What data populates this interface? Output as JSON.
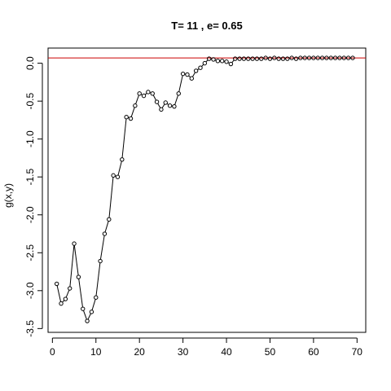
{
  "chart_data": {
    "type": "line",
    "title": "T=  11 , e=  0.65",
    "xlabel": "",
    "ylabel": "g(x,y)",
    "xlim": [
      -1,
      72
    ],
    "ylim": [
      -3.55,
      0.2
    ],
    "x_ticks": [
      0,
      10,
      20,
      30,
      40,
      50,
      60,
      70
    ],
    "y_ticks": [
      0.0,
      -0.5,
      -1.0,
      -1.5,
      -2.0,
      -2.5,
      -3.0,
      -3.5
    ],
    "x_tick_labels": [
      "0",
      "10",
      "20",
      "30",
      "40",
      "50",
      "60",
      "70"
    ],
    "y_tick_labels": [
      "0.0",
      "-0.5",
      "-1.0",
      "-1.5",
      "-2.0",
      "-2.5",
      "-3.0",
      "-3.5"
    ],
    "reference_line": {
      "y": 0.07,
      "color": "#cc0000"
    },
    "series": [
      {
        "color": "#000000",
        "marker": "open-circle",
        "x": [
          1,
          2,
          3,
          4,
          5,
          6,
          7,
          8,
          9,
          10,
          11,
          12,
          13,
          14,
          15,
          16,
          17,
          18,
          19,
          20,
          21,
          22,
          23,
          24,
          25,
          26,
          27,
          28,
          29,
          30,
          31,
          32,
          33,
          34,
          35,
          36,
          37,
          38,
          39,
          40,
          41,
          42,
          43,
          44,
          45,
          46,
          47,
          48,
          49,
          50,
          51,
          52,
          53,
          54,
          55,
          56,
          57,
          58,
          59,
          60,
          61,
          62,
          63,
          64,
          65,
          66,
          67,
          68,
          69
        ],
        "values": [
          -2.91,
          -3.17,
          -3.11,
          -2.97,
          -2.38,
          -2.82,
          -3.24,
          -3.4,
          -3.28,
          -3.09,
          -2.61,
          -2.25,
          -2.06,
          -1.48,
          -1.5,
          -1.27,
          -0.71,
          -0.73,
          -0.56,
          -0.4,
          -0.43,
          -0.38,
          -0.4,
          -0.51,
          -0.61,
          -0.52,
          -0.56,
          -0.57,
          -0.4,
          -0.14,
          -0.15,
          -0.2,
          -0.1,
          -0.06,
          0.0,
          0.06,
          0.05,
          0.03,
          0.03,
          0.02,
          -0.01,
          0.06,
          0.06,
          0.06,
          0.06,
          0.06,
          0.06,
          0.06,
          0.07,
          0.06,
          0.07,
          0.06,
          0.06,
          0.06,
          0.07,
          0.06,
          0.07,
          0.07,
          0.07,
          0.07,
          0.07,
          0.07,
          0.07,
          0.07,
          0.07,
          0.07,
          0.07,
          0.07,
          0.07
        ]
      }
    ]
  }
}
